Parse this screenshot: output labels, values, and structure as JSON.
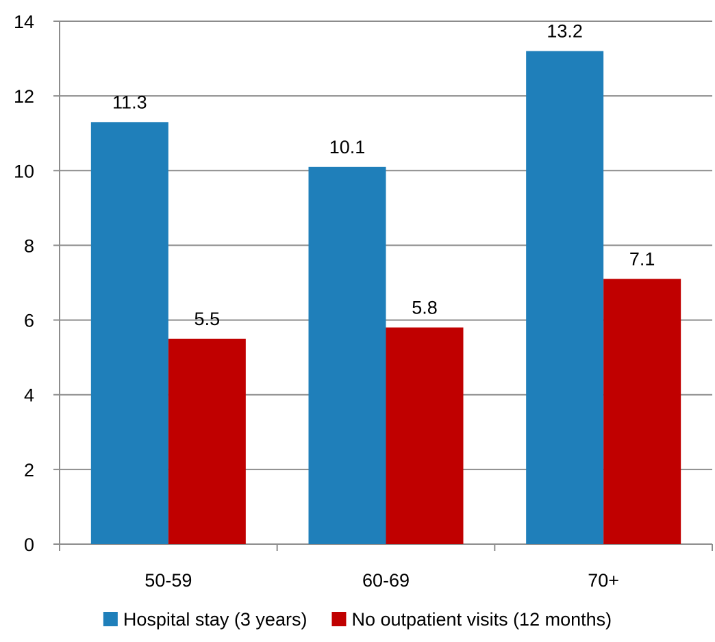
{
  "chart_data": {
    "type": "bar",
    "categories": [
      "50-59",
      "60-69",
      "70+"
    ],
    "series": [
      {
        "name": "Hospital stay (3 years)",
        "values": [
          11.3,
          10.1,
          13.2
        ],
        "labels": [
          "11.3",
          "10.1",
          "13.2"
        ],
        "color": "#1f7fba"
      },
      {
        "name": "No outpatient visits (12 months)",
        "values": [
          5.5,
          5.8,
          7.1
        ],
        "labels": [
          "5.5",
          "5.8",
          "7.1"
        ],
        "color": "#c00000"
      }
    ],
    "yticks": [
      "0",
      "2",
      "4",
      "6",
      "8",
      "10",
      "12",
      "14"
    ],
    "ylim": [
      0,
      14
    ],
    "grid": true,
    "legend_position": "bottom",
    "title": "",
    "xlabel": "",
    "ylabel": ""
  }
}
